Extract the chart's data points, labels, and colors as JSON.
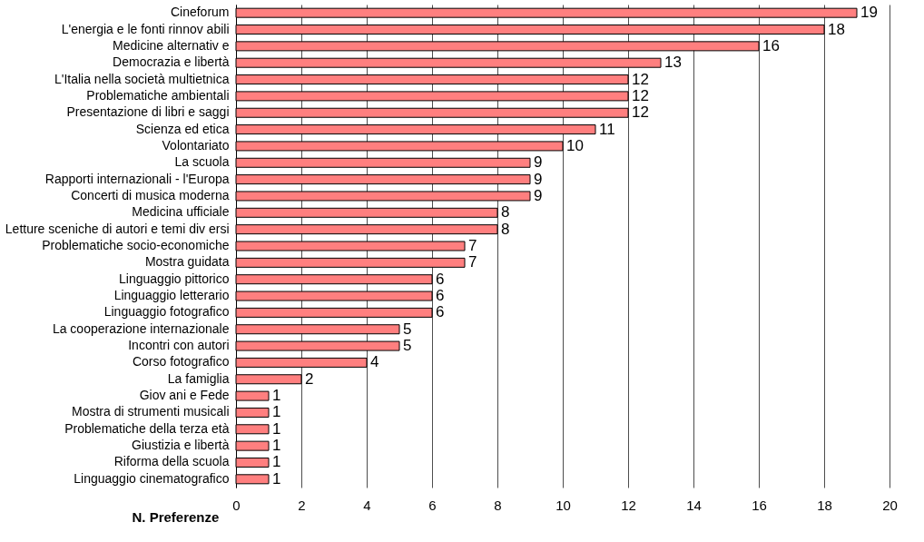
{
  "chart_data": {
    "type": "bar",
    "orientation": "horizontal",
    "xlabel": "N. Preferenze",
    "categories": [
      "Cineforum",
      "L'energia e le fonti rinnov abili",
      "Medicine alternativ e",
      "Democrazia e libertà",
      "L'Italia nella società multietnica",
      "Problematiche ambientali",
      "Presentazione di libri e saggi",
      "Scienza ed etica",
      "Volontariato",
      "La scuola",
      "Rapporti internazionali - l'Europa",
      "Concerti di musica moderna",
      "Medicina ufficiale",
      "Letture sceniche di autori e temi div ersi",
      "Problematiche socio-economiche",
      "Mostra guidata",
      "Linguaggio pittorico",
      "Linguaggio letterario",
      "Linguaggio fotografico",
      "La cooperazione internazionale",
      "Incontri con autori",
      "Corso fotografico",
      "La famiglia",
      "Giov ani e Fede",
      "Mostra di strumenti musicali",
      "Problematiche della terza età",
      "Giustizia e libertà",
      "Riforma della scuola",
      "Linguaggio cinematografico"
    ],
    "values": [
      19,
      18,
      16,
      13,
      12,
      12,
      12,
      11,
      10,
      9,
      9,
      9,
      8,
      8,
      7,
      7,
      6,
      6,
      6,
      5,
      5,
      4,
      2,
      1,
      1,
      1,
      1,
      1,
      1
    ],
    "color": "#ff7f7f",
    "xlim": [
      0,
      20
    ],
    "xticks": [
      0,
      2,
      4,
      6,
      8,
      10,
      12,
      14,
      16,
      18,
      20
    ],
    "grid": "x",
    "data_labels": true
  }
}
